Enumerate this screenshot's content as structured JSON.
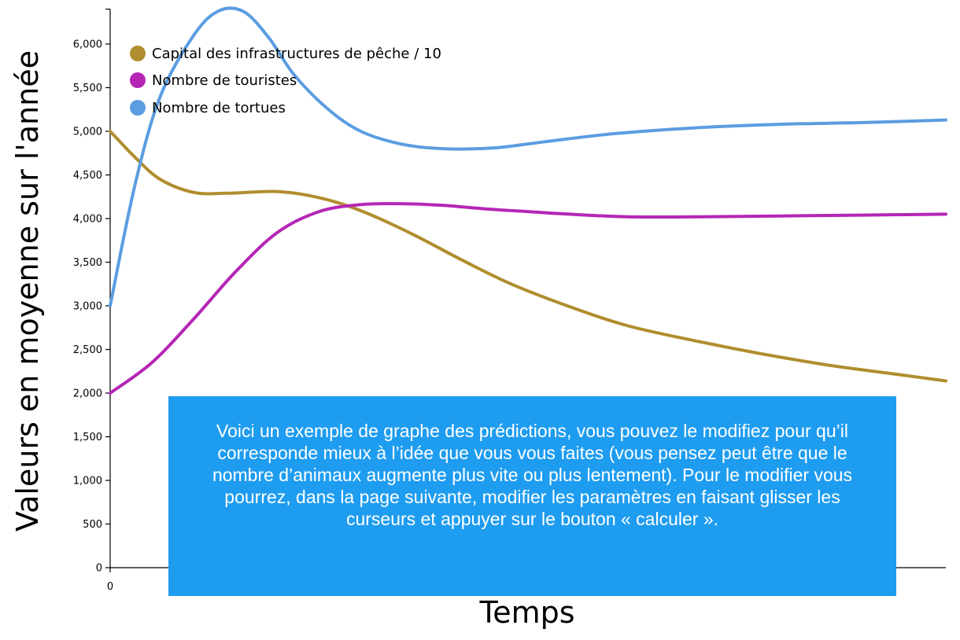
{
  "chart_data": {
    "type": "line",
    "xlabel": "Temps",
    "ylabel": "Valeurs en moyenne sur l'année",
    "x_tick_labels": [
      "0"
    ],
    "y_ticks": [
      0,
      500,
      1000,
      1500,
      2000,
      2500,
      3000,
      3500,
      4000,
      4500,
      5000,
      5500,
      6000
    ],
    "y_tick_labels": [
      "0",
      "500",
      "1,000",
      "1,500",
      "2,000",
      "2,500",
      "3,000",
      "3,500",
      "4,000",
      "4,500",
      "5,000",
      "5,500",
      "6,000"
    ],
    "ylim": [
      0,
      6400
    ],
    "xlim": [
      0,
      100
    ],
    "legend_position": "top-left",
    "series": [
      {
        "name": "Capital des infrastructures de pêche / 10",
        "color": "#b08d2e",
        "x": [
          0,
          3,
          6,
          10,
          14,
          20,
          25,
          30,
          36,
          42,
          48,
          55,
          62,
          70,
          78,
          86,
          93,
          100
        ],
        "values": [
          5000,
          4700,
          4450,
          4300,
          4290,
          4310,
          4240,
          4090,
          3830,
          3530,
          3250,
          2990,
          2770,
          2600,
          2450,
          2320,
          2230,
          2140
        ]
      },
      {
        "name": "Nombre de touristes",
        "color": "#b526b5",
        "x": [
          0,
          5,
          10,
          15,
          20,
          25,
          30,
          35,
          40,
          45,
          50,
          55,
          62,
          70,
          80,
          90,
          100
        ],
        "values": [
          2000,
          2350,
          2850,
          3390,
          3840,
          4080,
          4160,
          4170,
          4150,
          4110,
          4080,
          4050,
          4020,
          4020,
          4030,
          4040,
          4050
        ]
      },
      {
        "name": "Nombre de tortues",
        "color": "#5b9de0",
        "x": [
          0,
          3,
          6,
          10,
          13,
          16,
          19,
          22,
          26,
          30,
          35,
          40,
          46,
          52,
          60,
          70,
          80,
          90,
          100
        ],
        "values": [
          3000,
          4400,
          5400,
          6100,
          6380,
          6370,
          6070,
          5650,
          5260,
          5000,
          4850,
          4800,
          4810,
          4880,
          4970,
          5040,
          5080,
          5100,
          5130
        ]
      }
    ]
  },
  "callout": {
    "text": "Voici un exemple de graphe des prédictions, vous pouvez le modifiez pour qu’il corresponde mieux à l’idée que vous vous faites (vous pensez peut être que le nombre d’animaux augmente plus vite ou plus lentement). Pour le modifier vous pourrez, dans la page suivante, modifier les paramètres en faisant glisser les curseurs et appuyer sur le bouton « calculer »."
  }
}
